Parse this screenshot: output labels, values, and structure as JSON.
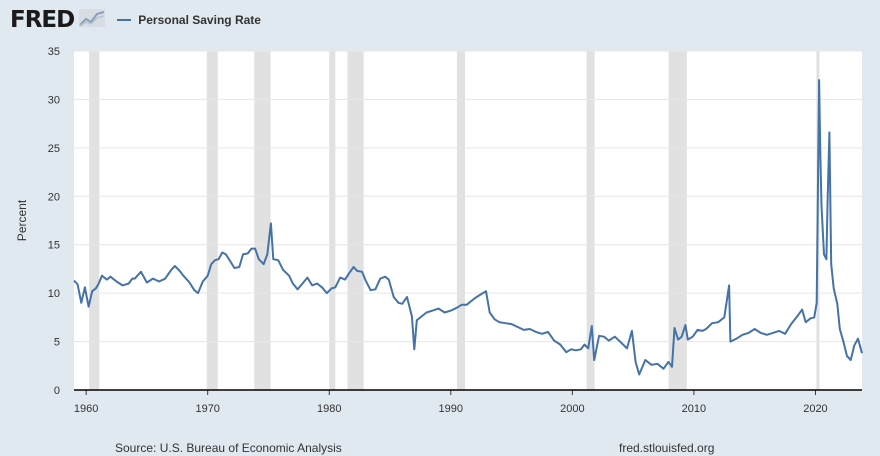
{
  "header": {
    "logo": "FRED",
    "logo_icon": "fred-chart-logo-icon"
  },
  "colors": {
    "series": "#4572a7",
    "recession": "#e1e1e1",
    "background": "#e1e9f0",
    "plot": "#ffffff",
    "grid": "#e6e6e6"
  },
  "footer": {
    "source": "Source: U.S. Bureau of Economic Analysis",
    "url": "fred.stlouisfed.org"
  },
  "chart_data": {
    "type": "line",
    "title": "Personal Saving Rate",
    "xlabel": "",
    "ylabel": "Percent",
    "xlim": [
      1959.0,
      2023.83
    ],
    "ylim": [
      0,
      35
    ],
    "yticks": [
      0,
      5,
      10,
      15,
      20,
      25,
      30,
      35
    ],
    "xticks": [
      1960,
      1970,
      1980,
      1990,
      2000,
      2010,
      2020
    ],
    "grid": true,
    "legend": "top-left",
    "recessions": [
      [
        1960.25,
        1961.08
      ],
      [
        1969.92,
        1970.83
      ],
      [
        1973.83,
        1975.17
      ],
      [
        1980.0,
        1980.5
      ],
      [
        1981.5,
        1982.83
      ],
      [
        1990.5,
        1991.17
      ],
      [
        2001.17,
        2001.83
      ],
      [
        2007.92,
        2009.42
      ],
      [
        2020.08,
        2020.33
      ]
    ],
    "series": [
      {
        "name": "Personal Saving Rate",
        "points": [
          [
            1959.0,
            11.3
          ],
          [
            1959.3,
            10.9
          ],
          [
            1959.6,
            9.0
          ],
          [
            1959.9,
            10.6
          ],
          [
            1960.2,
            8.6
          ],
          [
            1960.5,
            10.2
          ],
          [
            1960.8,
            10.5
          ],
          [
            1961.0,
            10.9
          ],
          [
            1961.3,
            11.8
          ],
          [
            1961.7,
            11.4
          ],
          [
            1962.0,
            11.7
          ],
          [
            1962.5,
            11.2
          ],
          [
            1963.0,
            10.8
          ],
          [
            1963.5,
            11.0
          ],
          [
            1963.8,
            11.5
          ],
          [
            1964.0,
            11.5
          ],
          [
            1964.5,
            12.2
          ],
          [
            1965.0,
            11.1
          ],
          [
            1965.5,
            11.5
          ],
          [
            1966.0,
            11.2
          ],
          [
            1966.5,
            11.5
          ],
          [
            1967.0,
            12.4
          ],
          [
            1967.3,
            12.8
          ],
          [
            1967.7,
            12.3
          ],
          [
            1968.0,
            11.8
          ],
          [
            1968.5,
            11.1
          ],
          [
            1968.9,
            10.3
          ],
          [
            1969.2,
            10.0
          ],
          [
            1969.6,
            11.2
          ],
          [
            1970.0,
            11.8
          ],
          [
            1970.3,
            13.0
          ],
          [
            1970.6,
            13.4
          ],
          [
            1970.9,
            13.5
          ],
          [
            1971.2,
            14.2
          ],
          [
            1971.5,
            14.0
          ],
          [
            1971.9,
            13.2
          ],
          [
            1972.2,
            12.6
          ],
          [
            1972.6,
            12.7
          ],
          [
            1972.9,
            14.0
          ],
          [
            1973.3,
            14.1
          ],
          [
            1973.6,
            14.6
          ],
          [
            1973.9,
            14.6
          ],
          [
            1974.2,
            13.5
          ],
          [
            1974.6,
            13.0
          ],
          [
            1974.9,
            14.0
          ],
          [
            1975.2,
            17.2
          ],
          [
            1975.4,
            13.5
          ],
          [
            1975.8,
            13.4
          ],
          [
            1976.2,
            12.4
          ],
          [
            1976.7,
            11.8
          ],
          [
            1977.0,
            11.0
          ],
          [
            1977.4,
            10.4
          ],
          [
            1977.8,
            11.0
          ],
          [
            1978.2,
            11.6
          ],
          [
            1978.6,
            10.8
          ],
          [
            1979.0,
            11.0
          ],
          [
            1979.4,
            10.6
          ],
          [
            1979.8,
            10.0
          ],
          [
            1980.2,
            10.5
          ],
          [
            1980.5,
            10.6
          ],
          [
            1980.9,
            11.6
          ],
          [
            1981.3,
            11.4
          ],
          [
            1981.6,
            12.0
          ],
          [
            1982.0,
            12.7
          ],
          [
            1982.3,
            12.3
          ],
          [
            1982.7,
            12.2
          ],
          [
            1983.0,
            11.3
          ],
          [
            1983.4,
            10.3
          ],
          [
            1983.8,
            10.4
          ],
          [
            1984.2,
            11.5
          ],
          [
            1984.6,
            11.7
          ],
          [
            1984.9,
            11.4
          ],
          [
            1985.3,
            9.6
          ],
          [
            1985.7,
            9.0
          ],
          [
            1986.0,
            8.9
          ],
          [
            1986.4,
            9.6
          ],
          [
            1986.8,
            7.6
          ],
          [
            1987.0,
            4.2
          ],
          [
            1987.2,
            7.2
          ],
          [
            1987.6,
            7.6
          ],
          [
            1988.0,
            8.0
          ],
          [
            1988.5,
            8.2
          ],
          [
            1989.0,
            8.4
          ],
          [
            1989.5,
            8.0
          ],
          [
            1990.0,
            8.2
          ],
          [
            1990.5,
            8.5
          ],
          [
            1990.9,
            8.8
          ],
          [
            1991.3,
            8.8
          ],
          [
            1991.7,
            9.2
          ],
          [
            1992.0,
            9.5
          ],
          [
            1992.5,
            9.9
          ],
          [
            1992.9,
            10.2
          ],
          [
            1993.2,
            8.0
          ],
          [
            1993.6,
            7.3
          ],
          [
            1994.0,
            7.0
          ],
          [
            1994.5,
            6.9
          ],
          [
            1995.0,
            6.8
          ],
          [
            1995.5,
            6.5
          ],
          [
            1996.0,
            6.2
          ],
          [
            1996.5,
            6.3
          ],
          [
            1997.0,
            6.0
          ],
          [
            1997.5,
            5.8
          ],
          [
            1998.0,
            6.0
          ],
          [
            1998.5,
            5.1
          ],
          [
            1999.0,
            4.7
          ],
          [
            1999.5,
            3.9
          ],
          [
            1999.9,
            4.2
          ],
          [
            2000.3,
            4.1
          ],
          [
            2000.7,
            4.2
          ],
          [
            2001.0,
            4.7
          ],
          [
            2001.3,
            4.3
          ],
          [
            2001.6,
            6.6
          ],
          [
            2001.8,
            3.1
          ],
          [
            2002.2,
            5.6
          ],
          [
            2002.6,
            5.5
          ],
          [
            2003.0,
            5.1
          ],
          [
            2003.5,
            5.5
          ],
          [
            2004.0,
            4.9
          ],
          [
            2004.5,
            4.3
          ],
          [
            2004.9,
            6.1
          ],
          [
            2005.2,
            2.9
          ],
          [
            2005.5,
            1.6
          ],
          [
            2006.0,
            3.1
          ],
          [
            2006.5,
            2.6
          ],
          [
            2007.0,
            2.7
          ],
          [
            2007.5,
            2.2
          ],
          [
            2007.9,
            2.9
          ],
          [
            2008.2,
            2.4
          ],
          [
            2008.4,
            6.4
          ],
          [
            2008.7,
            5.2
          ],
          [
            2009.0,
            5.5
          ],
          [
            2009.3,
            6.7
          ],
          [
            2009.5,
            5.2
          ],
          [
            2009.9,
            5.5
          ],
          [
            2010.3,
            6.2
          ],
          [
            2010.7,
            6.1
          ],
          [
            2011.0,
            6.3
          ],
          [
            2011.5,
            6.9
          ],
          [
            2012.0,
            7.0
          ],
          [
            2012.5,
            7.5
          ],
          [
            2012.9,
            10.8
          ],
          [
            2013.0,
            5.0
          ],
          [
            2013.5,
            5.3
          ],
          [
            2014.0,
            5.7
          ],
          [
            2014.5,
            5.9
          ],
          [
            2015.0,
            6.3
          ],
          [
            2015.5,
            5.9
          ],
          [
            2016.0,
            5.7
          ],
          [
            2016.5,
            5.9
          ],
          [
            2017.0,
            6.1
          ],
          [
            2017.5,
            5.8
          ],
          [
            2018.0,
            6.8
          ],
          [
            2018.5,
            7.6
          ],
          [
            2018.9,
            8.3
          ],
          [
            2019.2,
            7.0
          ],
          [
            2019.6,
            7.4
          ],
          [
            2019.9,
            7.5
          ],
          [
            2020.1,
            9.0
          ],
          [
            2020.3,
            32.0
          ],
          [
            2020.4,
            24.5
          ],
          [
            2020.5,
            19.0
          ],
          [
            2020.7,
            14.0
          ],
          [
            2020.9,
            13.5
          ],
          [
            2021.0,
            19.5
          ],
          [
            2021.15,
            26.6
          ],
          [
            2021.3,
            13.0
          ],
          [
            2021.5,
            10.5
          ],
          [
            2021.8,
            8.9
          ],
          [
            2022.0,
            6.3
          ],
          [
            2022.3,
            5.0
          ],
          [
            2022.6,
            3.5
          ],
          [
            2022.9,
            3.1
          ],
          [
            2023.2,
            4.6
          ],
          [
            2023.5,
            5.3
          ],
          [
            2023.83,
            3.8
          ]
        ]
      }
    ]
  }
}
